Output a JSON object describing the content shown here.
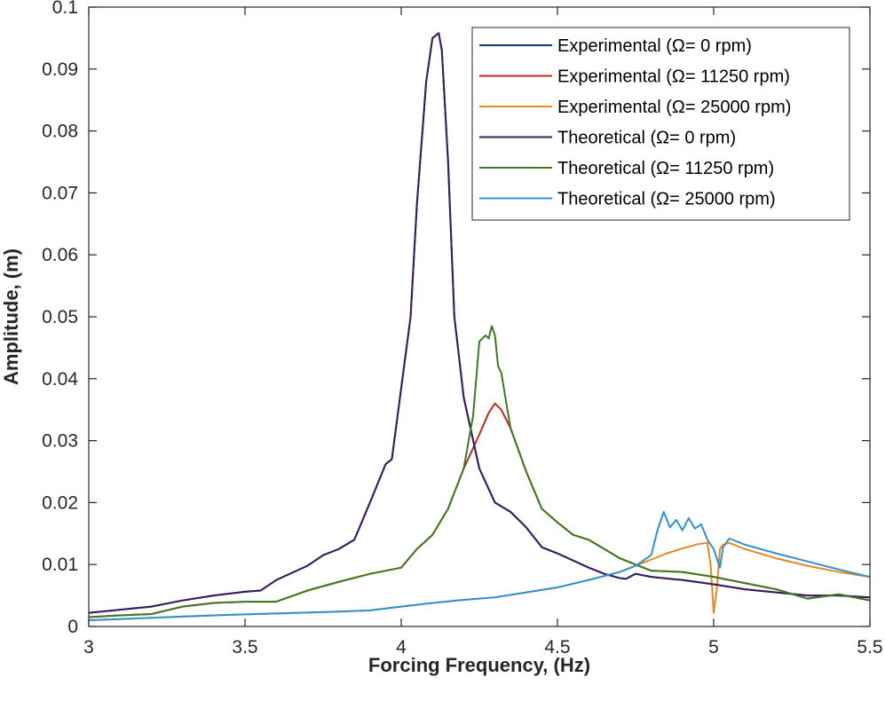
{
  "chart_data": {
    "type": "line",
    "title": "",
    "xlabel": "Forcing Frequency, (Hz)",
    "ylabel": "Amplitude, (m)",
    "xlim": [
      3,
      5.5
    ],
    "ylim": [
      0,
      0.1
    ],
    "x_ticks": [
      3,
      3.5,
      4,
      4.5,
      5,
      5.5
    ],
    "x_tick_labels": [
      "3",
      "3.5",
      "4",
      "4.5",
      "5",
      "5.5"
    ],
    "y_ticks": [
      0,
      0.01,
      0.02,
      0.03,
      0.04,
      0.05,
      0.06,
      0.07,
      0.08,
      0.09,
      0.1
    ],
    "y_tick_labels": [
      "0",
      "0.01",
      "0.02",
      "0.03",
      "0.04",
      "0.05",
      "0.06",
      "0.07",
      "0.08",
      "0.09",
      "0.1"
    ],
    "grid": false,
    "legend_position": "top-right",
    "series": [
      {
        "name": "Experimental (Ω= 0 rpm)",
        "color": "#0c3c78",
        "x": [
          3.0,
          3.1,
          3.2,
          3.3,
          3.4,
          3.5,
          3.55,
          3.6,
          3.7,
          3.75,
          3.8,
          3.85,
          3.9,
          3.95,
          3.97,
          4.0,
          4.03,
          4.05,
          4.08,
          4.1,
          4.12,
          4.13,
          4.15,
          4.17,
          4.2,
          4.25,
          4.3,
          4.35,
          4.4,
          4.45,
          4.5,
          4.6,
          4.65,
          4.7,
          4.72,
          4.75,
          4.8,
          4.9,
          5.0,
          5.1,
          5.2,
          5.3,
          5.4,
          5.5
        ],
        "y": [
          0.0022,
          0.0027,
          0.0032,
          0.0042,
          0.005,
          0.0056,
          0.0058,
          0.0075,
          0.0098,
          0.0115,
          0.0125,
          0.014,
          0.02,
          0.0262,
          0.027,
          0.0385,
          0.05,
          0.068,
          0.088,
          0.095,
          0.0958,
          0.093,
          0.075,
          0.05,
          0.037,
          0.0255,
          0.02,
          0.0185,
          0.016,
          0.0128,
          0.0118,
          0.0095,
          0.0085,
          0.0078,
          0.0077,
          0.0085,
          0.008,
          0.0075,
          0.0068,
          0.006,
          0.0055,
          0.005,
          0.005,
          0.0047
        ]
      },
      {
        "name": "Experimental (Ω= 11250 rpm)",
        "color": "#c0281c",
        "x": [
          3.0,
          3.1,
          3.2,
          3.3,
          3.4,
          3.5,
          3.6,
          3.7,
          3.8,
          3.9,
          3.95,
          4.0,
          4.05,
          4.1,
          4.15,
          4.2,
          4.25,
          4.28,
          4.3,
          4.32,
          4.35,
          4.4,
          4.45,
          4.5,
          4.55,
          4.6,
          4.7,
          4.8,
          4.9,
          5.0,
          5.1,
          5.2,
          5.3,
          5.4,
          5.5
        ],
        "y": [
          0.0015,
          0.0018,
          0.002,
          0.0032,
          0.0038,
          0.004,
          0.004,
          0.0058,
          0.0072,
          0.0085,
          0.009,
          0.0095,
          0.0125,
          0.0148,
          0.019,
          0.0255,
          0.031,
          0.0345,
          0.036,
          0.035,
          0.032,
          0.025,
          0.019,
          0.0168,
          0.0148,
          0.014,
          0.011,
          0.009,
          0.0088,
          0.008,
          0.007,
          0.006,
          0.0045,
          0.0052,
          0.0042
        ]
      },
      {
        "name": "Experimental (Ω= 25000 rpm)",
        "color": "#e6891f",
        "x": [
          3.0,
          3.2,
          3.4,
          3.6,
          3.8,
          3.9,
          4.0,
          4.1,
          4.2,
          4.3,
          4.4,
          4.5,
          4.6,
          4.7,
          4.75,
          4.8,
          4.85,
          4.9,
          4.95,
          4.98,
          4.99,
          5.0,
          5.01,
          5.02,
          5.03,
          5.05,
          5.1,
          5.2,
          5.3,
          5.4,
          5.5
        ],
        "y": [
          0.001,
          0.0014,
          0.0018,
          0.0021,
          0.0024,
          0.0026,
          0.0032,
          0.0038,
          0.0043,
          0.0047,
          0.0055,
          0.0063,
          0.0075,
          0.0088,
          0.0098,
          0.0108,
          0.0118,
          0.0126,
          0.0133,
          0.0135,
          0.01,
          0.0022,
          0.006,
          0.0125,
          0.0132,
          0.0135,
          0.0125,
          0.011,
          0.0098,
          0.0088,
          0.008
        ]
      },
      {
        "name": "Theoretical (Ω= 0 rpm)",
        "color": "#3d1a5e",
        "x": [
          3.0,
          3.1,
          3.2,
          3.3,
          3.4,
          3.5,
          3.55,
          3.6,
          3.7,
          3.75,
          3.8,
          3.85,
          3.9,
          3.95,
          3.97,
          4.0,
          4.03,
          4.05,
          4.08,
          4.1,
          4.12,
          4.13,
          4.15,
          4.17,
          4.2,
          4.25,
          4.3,
          4.35,
          4.4,
          4.45,
          4.5,
          4.6,
          4.65,
          4.7,
          4.72,
          4.75,
          4.8,
          4.9,
          5.0,
          5.1,
          5.2,
          5.3,
          5.4,
          5.5
        ],
        "y": [
          0.0022,
          0.0027,
          0.0032,
          0.0042,
          0.005,
          0.0056,
          0.0058,
          0.0075,
          0.0098,
          0.0115,
          0.0125,
          0.014,
          0.02,
          0.0262,
          0.027,
          0.0385,
          0.05,
          0.068,
          0.088,
          0.095,
          0.0958,
          0.093,
          0.075,
          0.05,
          0.037,
          0.0255,
          0.02,
          0.0185,
          0.016,
          0.0128,
          0.0118,
          0.0095,
          0.0085,
          0.0078,
          0.0077,
          0.0085,
          0.008,
          0.0075,
          0.0068,
          0.006,
          0.0055,
          0.005,
          0.005,
          0.0047
        ]
      },
      {
        "name": "Theoretical (Ω= 11250 rpm)",
        "color": "#3f7a22",
        "x": [
          3.0,
          3.1,
          3.2,
          3.3,
          3.4,
          3.5,
          3.6,
          3.7,
          3.8,
          3.9,
          3.95,
          4.0,
          4.05,
          4.1,
          4.15,
          4.2,
          4.23,
          4.25,
          4.27,
          4.28,
          4.29,
          4.3,
          4.31,
          4.32,
          4.35,
          4.4,
          4.45,
          4.5,
          4.55,
          4.6,
          4.7,
          4.8,
          4.9,
          5.0,
          5.1,
          5.2,
          5.3,
          5.4,
          5.5
        ],
        "y": [
          0.0015,
          0.0018,
          0.002,
          0.0032,
          0.0038,
          0.004,
          0.004,
          0.0058,
          0.0072,
          0.0085,
          0.009,
          0.0095,
          0.0125,
          0.0148,
          0.019,
          0.0255,
          0.034,
          0.046,
          0.047,
          0.0465,
          0.0485,
          0.047,
          0.042,
          0.041,
          0.032,
          0.025,
          0.019,
          0.0168,
          0.0148,
          0.014,
          0.011,
          0.009,
          0.0088,
          0.008,
          0.007,
          0.006,
          0.0045,
          0.0052,
          0.0042
        ]
      },
      {
        "name": "Theoretical (Ω= 25000 rpm)",
        "color": "#2f93d3",
        "x": [
          3.0,
          3.2,
          3.4,
          3.6,
          3.8,
          3.9,
          4.0,
          4.1,
          4.2,
          4.3,
          4.4,
          4.5,
          4.6,
          4.7,
          4.75,
          4.8,
          4.82,
          4.84,
          4.86,
          4.88,
          4.9,
          4.92,
          4.94,
          4.96,
          4.98,
          5.0,
          5.01,
          5.02,
          5.03,
          5.05,
          5.1,
          5.2,
          5.3,
          5.4,
          5.5
        ],
        "y": [
          0.001,
          0.0014,
          0.0018,
          0.0021,
          0.0024,
          0.0026,
          0.0032,
          0.0038,
          0.0043,
          0.0047,
          0.0055,
          0.0063,
          0.0075,
          0.0088,
          0.0098,
          0.0115,
          0.0155,
          0.0185,
          0.016,
          0.0172,
          0.0155,
          0.0175,
          0.0158,
          0.0165,
          0.014,
          0.0125,
          0.011,
          0.0095,
          0.0128,
          0.0142,
          0.0132,
          0.0118,
          0.0105,
          0.0092,
          0.008
        ]
      }
    ]
  }
}
